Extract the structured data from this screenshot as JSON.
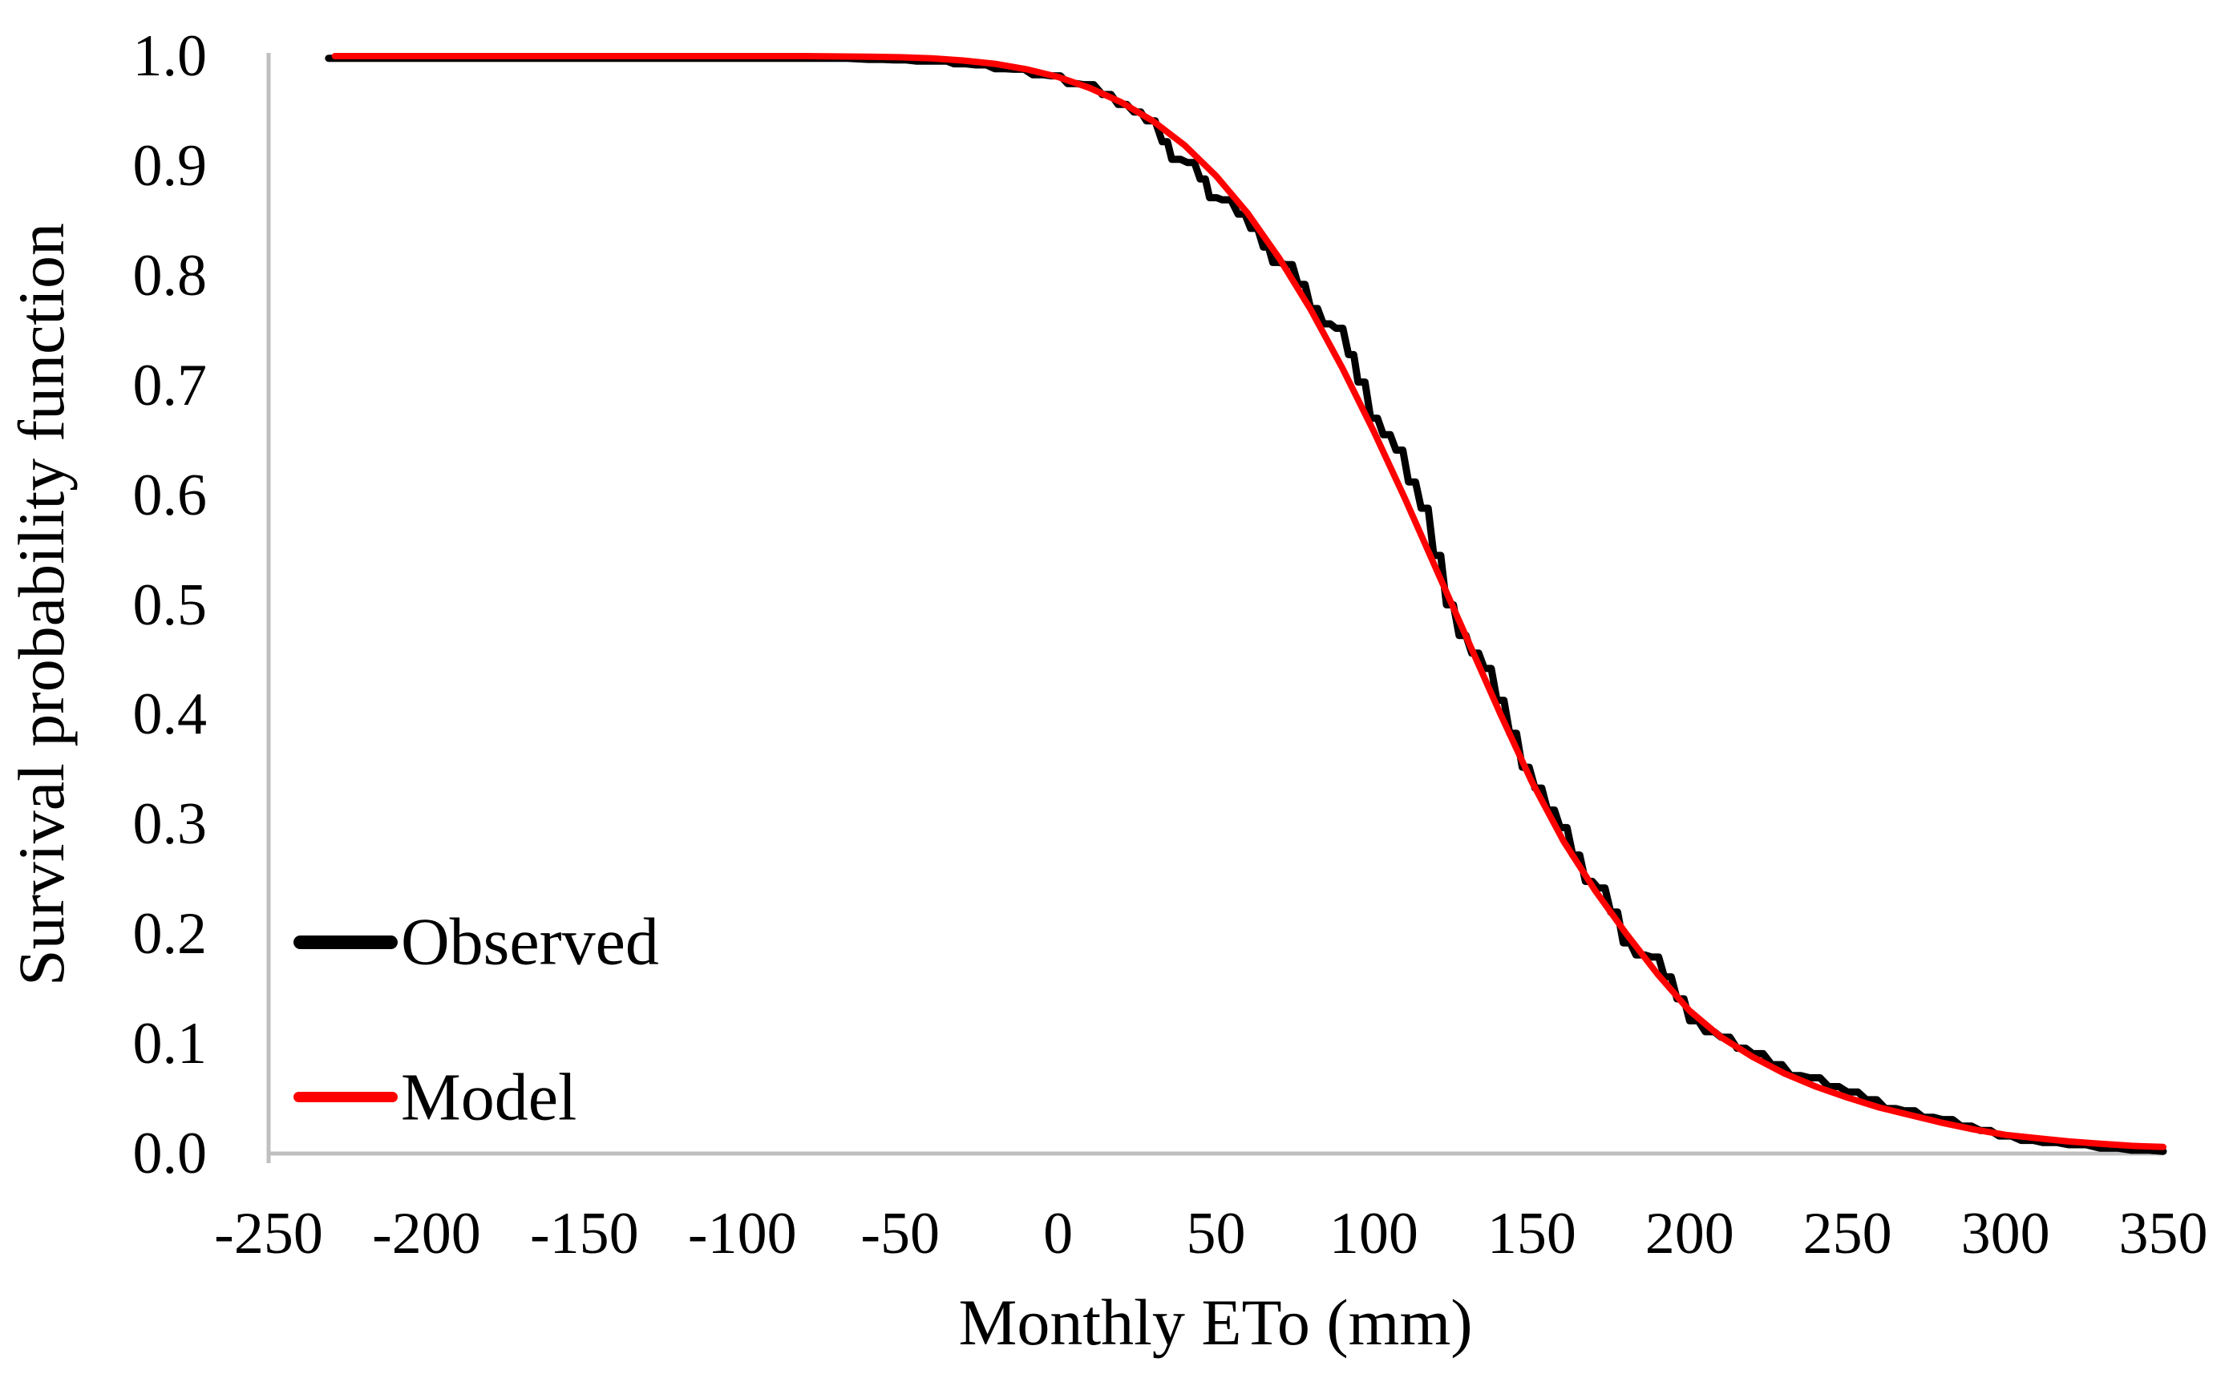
{
  "legend": {
    "items": [
      {
        "label": "Observed",
        "color": "#000000"
      },
      {
        "label": "Model",
        "color": "#FF0000"
      }
    ]
  },
  "chart_data": {
    "type": "line",
    "title": "",
    "xlabel": "Monthly ETo (mm)",
    "ylabel": "Survival probability function",
    "xlim": [
      -250,
      350
    ],
    "ylim": [
      0,
      1
    ],
    "grid": false,
    "axis_color": "#BFBFBF",
    "legend_position": "inside-left-bottom",
    "x_ticks": [
      {
        "v": -250,
        "label": "-250"
      },
      {
        "v": -200,
        "label": "-200"
      },
      {
        "v": -150,
        "label": "-150"
      },
      {
        "v": -100,
        "label": "-100"
      },
      {
        "v": -50,
        "label": "-50"
      },
      {
        "v": 0,
        "label": "0"
      },
      {
        "v": 50,
        "label": "50"
      },
      {
        "v": 100,
        "label": "100"
      },
      {
        "v": 150,
        "label": "150"
      },
      {
        "v": 200,
        "label": "200"
      },
      {
        "v": 250,
        "label": "250"
      },
      {
        "v": 300,
        "label": "300"
      },
      {
        "v": 350,
        "label": "350"
      }
    ],
    "y_ticks": [
      {
        "v": 0.0,
        "label": "0.0"
      },
      {
        "v": 0.1,
        "label": "0.1"
      },
      {
        "v": 0.2,
        "label": "0.2"
      },
      {
        "v": 0.3,
        "label": "0.3"
      },
      {
        "v": 0.4,
        "label": "0.4"
      },
      {
        "v": 0.5,
        "label": "0.5"
      },
      {
        "v": 0.6,
        "label": "0.6"
      },
      {
        "v": 0.7,
        "label": "0.7"
      },
      {
        "v": 0.8,
        "label": "0.8"
      },
      {
        "v": 0.9,
        "label": "0.9"
      },
      {
        "v": 1.0,
        "label": "1.0"
      }
    ],
    "series": [
      {
        "name": "Observed",
        "color": "#000000",
        "stroke_width": 9,
        "style": "step",
        "points": [
          [
            -231,
            0.998
          ],
          [
            -200,
            0.998
          ],
          [
            -150,
            0.998
          ],
          [
            -100,
            0.998
          ],
          [
            -75,
            0.998
          ],
          [
            -60,
            0.997
          ],
          [
            -52,
            0.9965
          ],
          [
            -45,
            0.9955
          ],
          [
            -38,
            0.9955
          ],
          [
            -33,
            0.993
          ],
          [
            -26,
            0.992
          ],
          [
            -20,
            0.9885
          ],
          [
            -14,
            0.988
          ],
          [
            -8,
            0.983
          ],
          [
            -2,
            0.982
          ],
          [
            3,
            0.975
          ],
          [
            8,
            0.974
          ],
          [
            14,
            0.965
          ],
          [
            19,
            0.956
          ],
          [
            24,
            0.949
          ],
          [
            28,
            0.941
          ],
          [
            33,
            0.922
          ],
          [
            36,
            0.906
          ],
          [
            41,
            0.903
          ],
          [
            45,
            0.888
          ],
          [
            48,
            0.871
          ],
          [
            52,
            0.869
          ],
          [
            57,
            0.856
          ],
          [
            61,
            0.843
          ],
          [
            65,
            0.826
          ],
          [
            68,
            0.812
          ],
          [
            72,
            0.81
          ],
          [
            76,
            0.792
          ],
          [
            80,
            0.77
          ],
          [
            84,
            0.756
          ],
          [
            88,
            0.752
          ],
          [
            92,
            0.728
          ],
          [
            95,
            0.703
          ],
          [
            99,
            0.67
          ],
          [
            103,
            0.655
          ],
          [
            107,
            0.641
          ],
          [
            111,
            0.612
          ],
          [
            115,
            0.588
          ],
          [
            119,
            0.545
          ],
          [
            123,
            0.5
          ],
          [
            127,
            0.472
          ],
          [
            131,
            0.456
          ],
          [
            135,
            0.442
          ],
          [
            139,
            0.413
          ],
          [
            143,
            0.383
          ],
          [
            147,
            0.352
          ],
          [
            151,
            0.333
          ],
          [
            155,
            0.313
          ],
          [
            159,
            0.297
          ],
          [
            163,
            0.272
          ],
          [
            167,
            0.248
          ],
          [
            171,
            0.242
          ],
          [
            175,
            0.22
          ],
          [
            179,
            0.192
          ],
          [
            183,
            0.181
          ],
          [
            188,
            0.179
          ],
          [
            192,
            0.161
          ],
          [
            196,
            0.141
          ],
          [
            200,
            0.121
          ],
          [
            205,
            0.111
          ],
          [
            210,
            0.106
          ],
          [
            215,
            0.096
          ],
          [
            220,
            0.091
          ],
          [
            226,
            0.081
          ],
          [
            232,
            0.071
          ],
          [
            238,
            0.069
          ],
          [
            244,
            0.061
          ],
          [
            250,
            0.056
          ],
          [
            256,
            0.049
          ],
          [
            262,
            0.041
          ],
          [
            268,
            0.039
          ],
          [
            274,
            0.033
          ],
          [
            280,
            0.031
          ],
          [
            286,
            0.025
          ],
          [
            292,
            0.021
          ],
          [
            298,
            0.016
          ],
          [
            305,
            0.012
          ],
          [
            312,
            0.01
          ],
          [
            320,
            0.008
          ],
          [
            330,
            0.005
          ],
          [
            340,
            0.003
          ],
          [
            350,
            0.002
          ]
        ]
      },
      {
        "name": "Model",
        "color": "#FF0000",
        "stroke_width": 8,
        "style": "smooth",
        "points": [
          [
            -229,
            1.0
          ],
          [
            -180,
            1.0
          ],
          [
            -120,
            1.0
          ],
          [
            -80,
            1.0
          ],
          [
            -60,
            0.9995
          ],
          [
            -50,
            0.999
          ],
          [
            -40,
            0.998
          ],
          [
            -30,
            0.996
          ],
          [
            -20,
            0.993
          ],
          [
            -10,
            0.988
          ],
          [
            0,
            0.981
          ],
          [
            10,
            0.971
          ],
          [
            20,
            0.958
          ],
          [
            30,
            0.941
          ],
          [
            40,
            0.919
          ],
          [
            50,
            0.891
          ],
          [
            60,
            0.857
          ],
          [
            70,
            0.816
          ],
          [
            80,
            0.769
          ],
          [
            90,
            0.716
          ],
          [
            100,
            0.658
          ],
          [
            110,
            0.596
          ],
          [
            120,
            0.531
          ],
          [
            130,
            0.466
          ],
          [
            140,
            0.401
          ],
          [
            150,
            0.339
          ],
          [
            160,
            0.285
          ],
          [
            170,
            0.24
          ],
          [
            180,
            0.2
          ],
          [
            190,
            0.163
          ],
          [
            200,
            0.13
          ],
          [
            210,
            0.106
          ],
          [
            220,
            0.088
          ],
          [
            230,
            0.073
          ],
          [
            240,
            0.061
          ],
          [
            250,
            0.051
          ],
          [
            260,
            0.042
          ],
          [
            270,
            0.035
          ],
          [
            280,
            0.028
          ],
          [
            290,
            0.022
          ],
          [
            300,
            0.017
          ],
          [
            310,
            0.014
          ],
          [
            320,
            0.011
          ],
          [
            330,
            0.009
          ],
          [
            340,
            0.007
          ],
          [
            350,
            0.006
          ]
        ]
      }
    ]
  }
}
